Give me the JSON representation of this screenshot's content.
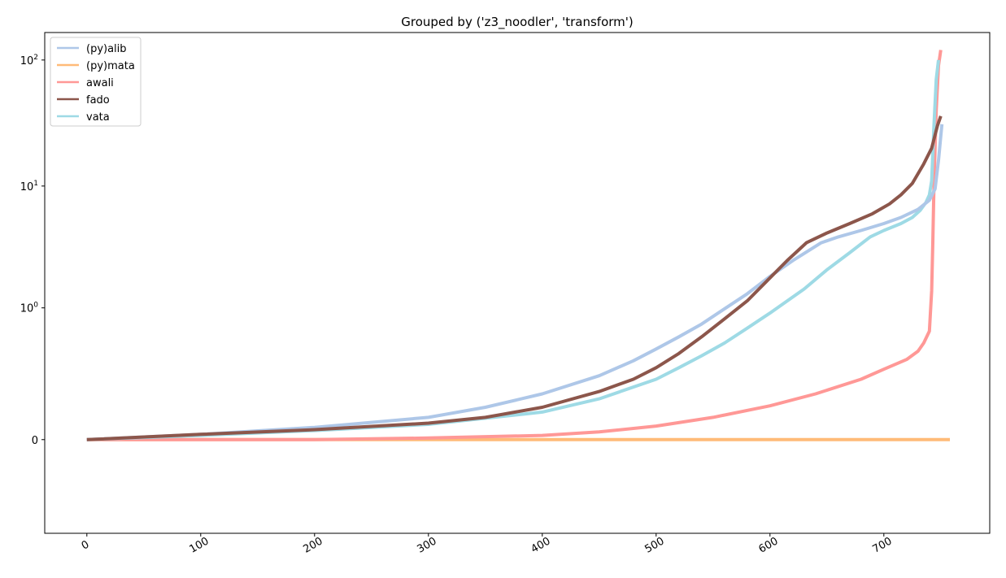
{
  "chart_data": {
    "type": "line",
    "title": "Grouped by ('z3_noodler', 'transform')",
    "xlabel": "",
    "ylabel": "",
    "yscale": "symlog",
    "xlim": [
      -37,
      793
    ],
    "ylim": [
      -0.45,
      165
    ],
    "legend_position": "top-left",
    "grid": false,
    "x_ticks": [
      {
        "value": 0,
        "label": "0"
      },
      {
        "value": 100,
        "label": "100"
      },
      {
        "value": 200,
        "label": "200"
      },
      {
        "value": 300,
        "label": "300"
      },
      {
        "value": 400,
        "label": "400"
      },
      {
        "value": 500,
        "label": "500"
      },
      {
        "value": 600,
        "label": "600"
      },
      {
        "value": 700,
        "label": "700"
      }
    ],
    "y_ticks": [
      {
        "value": 0,
        "label": "0",
        "sup": ""
      },
      {
        "value": 1,
        "label": "10",
        "sup": "0"
      },
      {
        "value": 10,
        "label": "10",
        "sup": "1"
      },
      {
        "value": 100,
        "label": "10",
        "sup": "2"
      }
    ],
    "series": [
      {
        "name": "(py)alib",
        "color": "#aec7e8",
        "x": [
          0,
          100,
          200,
          300,
          350,
          400,
          450,
          480,
          500,
          520,
          540,
          560,
          580,
          600,
          620,
          645,
          660,
          680,
          700,
          715,
          730,
          740,
          745,
          748,
          751
        ],
        "y": [
          0,
          0.01,
          0.025,
          0.05,
          0.08,
          0.13,
          0.22,
          0.32,
          0.42,
          0.55,
          0.72,
          0.98,
          1.32,
          1.85,
          2.5,
          3.5,
          3.9,
          4.4,
          5.0,
          5.6,
          6.5,
          7.7,
          9.5,
          16,
          31
        ]
      },
      {
        "name": "(py)mata",
        "color": "#ffbb78",
        "x": [
          0,
          200,
          400,
          600,
          758
        ],
        "y": [
          0,
          0,
          0,
          0,
          0
        ]
      },
      {
        "name": "awali",
        "color": "#ff9896",
        "x": [
          0,
          200,
          300,
          400,
          450,
          500,
          550,
          600,
          640,
          680,
          700,
          720,
          730,
          735,
          740,
          742,
          743,
          744,
          746,
          748,
          750
        ],
        "y": [
          0,
          0,
          0.003,
          0.008,
          0.015,
          0.028,
          0.05,
          0.085,
          0.13,
          0.2,
          0.26,
          0.33,
          0.4,
          0.48,
          0.62,
          1.4,
          3.5,
          10,
          40,
          90,
          120
        ]
      },
      {
        "name": "fado",
        "color": "#8c564b",
        "x": [
          0,
          100,
          200,
          300,
          350,
          400,
          450,
          480,
          500,
          520,
          540,
          560,
          580,
          600,
          615,
          632,
          650,
          670,
          690,
          705,
          715,
          725,
          735,
          742,
          747,
          750
        ],
        "y": [
          0,
          0.01,
          0.02,
          0.035,
          0.05,
          0.08,
          0.14,
          0.2,
          0.27,
          0.38,
          0.55,
          0.8,
          1.15,
          1.8,
          2.5,
          3.5,
          4.2,
          5.0,
          6.0,
          7.2,
          8.5,
          10.5,
          15,
          20,
          30,
          36
        ]
      },
      {
        "name": "vata",
        "color": "#9edae5",
        "x": [
          0,
          100,
          200,
          300,
          400,
          450,
          500,
          520,
          540,
          560,
          580,
          600,
          630,
          650,
          670,
          688,
          700,
          715,
          725,
          732,
          737,
          740,
          742,
          744,
          746,
          748
        ],
        "y": [
          0,
          0.008,
          0.018,
          0.032,
          0.065,
          0.11,
          0.2,
          0.27,
          0.36,
          0.48,
          0.66,
          0.9,
          1.45,
          2.1,
          2.9,
          3.9,
          4.4,
          5.0,
          5.6,
          6.4,
          7.4,
          8.5,
          11,
          30,
          70,
          100
        ]
      }
    ]
  }
}
